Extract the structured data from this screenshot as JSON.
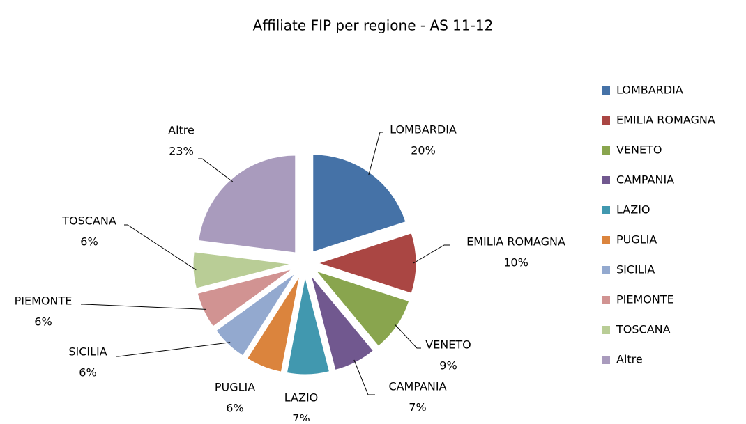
{
  "chart_data": {
    "type": "pie",
    "title": "Affiliate FIP per regione - AS 11-12",
    "categories": [
      "LOMBARDIA",
      "EMILIA ROMAGNA",
      "VENETO",
      "CAMPANIA",
      "LAZIO",
      "PUGLIA",
      "SICILIA",
      "PIEMONTE",
      "TOSCANA",
      "Altre"
    ],
    "values": [
      20,
      10,
      9,
      7,
      7,
      6,
      6,
      6,
      6,
      23
    ],
    "value_labels": [
      "20%",
      "10%",
      "9%",
      "7%",
      "7%",
      "6%",
      "6%",
      "6%",
      "6%",
      "23%"
    ],
    "colors": [
      "#4572a7",
      "#aa4643",
      "#89a54e",
      "#71588f",
      "#4198af",
      "#db843d",
      "#93a9cf",
      "#d19392",
      "#b9cd96",
      "#a99bbd"
    ],
    "legend": "right"
  }
}
